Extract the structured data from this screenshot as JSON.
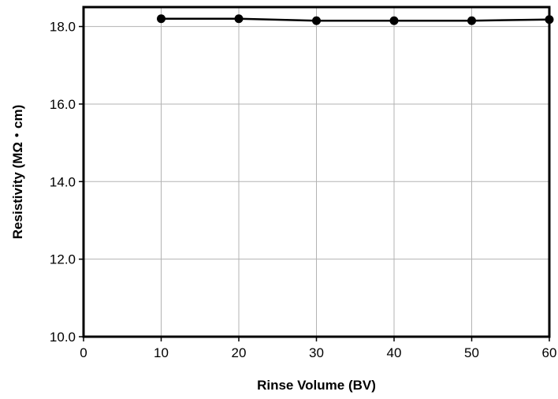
{
  "chart_data": {
    "type": "line",
    "title": "",
    "xlabel": "Rinse Volume (BV)",
    "ylabel": "Resistivity (MΩ・cm)",
    "xlim": [
      0,
      60
    ],
    "ylim": [
      10.0,
      18.5
    ],
    "x_ticks": [
      0,
      10,
      20,
      30,
      40,
      50,
      60
    ],
    "x_tick_labels": [
      "0",
      "10",
      "20",
      "30",
      "40",
      "50",
      "60"
    ],
    "y_ticks": [
      10,
      12,
      14,
      16,
      18
    ],
    "y_tick_labels": [
      "10.0",
      "12.0",
      "14.0",
      "16.0",
      "18.0"
    ],
    "grid": true,
    "legend": "none",
    "series": [
      {
        "x": [
          10,
          20,
          30,
          40,
          50,
          60
        ],
        "values": [
          18.2,
          18.2,
          18.15,
          18.15,
          18.15,
          18.18
        ],
        "color": "#000000",
        "marker": "circle"
      }
    ]
  }
}
